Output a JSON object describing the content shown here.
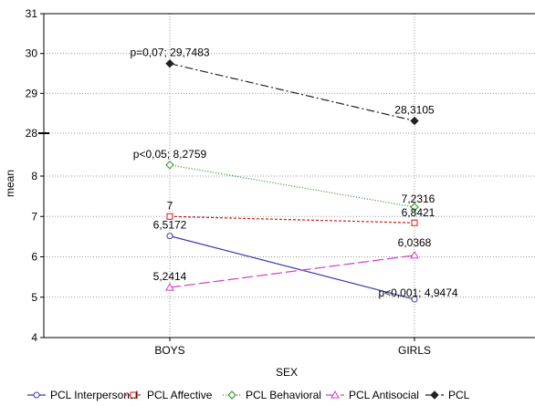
{
  "chart_data": {
    "type": "line",
    "xlabel": "SEX",
    "ylabel": "mean",
    "categories": [
      "BOYS",
      "GIRLS"
    ],
    "axis_break": true,
    "lower_ylim": [
      4,
      8
    ],
    "upper_ylim": [
      28,
      31
    ],
    "lower_yticks": [
      "4",
      "5",
      "6",
      "7",
      "8"
    ],
    "upper_yticks": [
      "28",
      "29",
      "30",
      "31"
    ],
    "grid": "dotted",
    "legend_position": "bottom",
    "series": [
      {
        "name": "PCL Interpersonal",
        "values": [
          6.5172,
          4.9474
        ],
        "labels": [
          "6,5172",
          "p<0,001; 4,9474"
        ],
        "color": "#3c3caa",
        "marker": "circle",
        "dash": ""
      },
      {
        "name": "PCL Affective",
        "values": [
          7,
          6.8421
        ],
        "labels": [
          "7",
          "6,8421"
        ],
        "color": "#d01818",
        "marker": "square",
        "dash": "3 2"
      },
      {
        "name": "PCL Behavioral",
        "values": [
          8.2759,
          7.2316
        ],
        "labels": [
          "p<0,05; 8,2759",
          "7,2316"
        ],
        "color": "#1e8c1e",
        "marker": "diamond",
        "dash": "1 2"
      },
      {
        "name": "PCL Antisocial",
        "values": [
          5.2414,
          6.0368
        ],
        "labels": [
          "5,2414",
          "6,0368"
        ],
        "color": "#d23cc8",
        "marker": "triangle",
        "dash": "12 4"
      },
      {
        "name": "PCL",
        "values": [
          29.7483,
          28.3105
        ],
        "labels": [
          "p=0,07; 29,7483",
          "28,3105"
        ],
        "color": "#222222",
        "marker": "filled-diamond",
        "dash": "9 3 2 3"
      }
    ]
  }
}
